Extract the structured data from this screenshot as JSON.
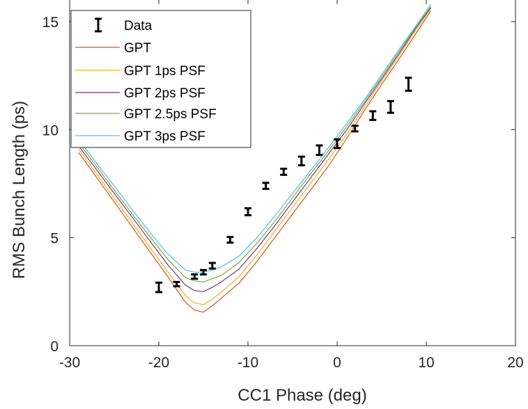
{
  "chart_data": {
    "type": "line",
    "title": "",
    "xlabel": "CC1 Phase (deg)",
    "ylabel": "RMS Bunch Length (ps)",
    "xlim": [
      -30,
      20
    ],
    "ylim": [
      0,
      16
    ],
    "xticks": [
      -30,
      -20,
      -10,
      0,
      10,
      20
    ],
    "yticks": [
      0,
      5,
      10,
      15
    ],
    "grid": false,
    "legend_position": "top-left",
    "series": [
      {
        "name": "Data",
        "style": "errorbar",
        "color": "#000000",
        "x": [
          -20,
          -18,
          -16,
          -15,
          -14,
          -12,
          -10,
          -8,
          -6,
          -4,
          -2,
          0,
          2,
          4,
          6,
          8
        ],
        "y": [
          2.7,
          2.85,
          3.2,
          3.4,
          3.7,
          4.9,
          6.2,
          7.4,
          8.05,
          8.55,
          9.05,
          9.35,
          10.05,
          10.65,
          11.05,
          12.1
        ],
        "err": [
          0.22,
          0.1,
          0.1,
          0.1,
          0.13,
          0.13,
          0.16,
          0.14,
          0.14,
          0.2,
          0.22,
          0.2,
          0.13,
          0.2,
          0.27,
          0.3
        ]
      },
      {
        "name": "GPT",
        "style": "line",
        "color": "#D95319",
        "x": [
          -29,
          -27,
          -25,
          -23,
          -21,
          -19,
          -17,
          -16,
          -15,
          -14,
          -13,
          -11,
          -9,
          -7,
          -5,
          -3,
          -1,
          1,
          3,
          5,
          7,
          9,
          10.5
        ],
        "y": [
          8.95,
          7.8,
          6.65,
          5.5,
          4.35,
          3.2,
          2.0,
          1.65,
          1.55,
          1.85,
          2.2,
          2.9,
          3.9,
          5.0,
          6.1,
          7.2,
          8.3,
          9.55,
          10.85,
          12.1,
          13.3,
          14.55,
          15.5
        ]
      },
      {
        "name": "GPT 1ps PSF",
        "style": "line",
        "color": "#EDB120",
        "x": [
          -29,
          -27,
          -25,
          -23,
          -21,
          -19,
          -17,
          -16,
          -15,
          -14,
          -13,
          -11,
          -9,
          -7,
          -5,
          -3,
          -1,
          1,
          3,
          5,
          7,
          9,
          10.5
        ],
        "y": [
          9.1,
          7.97,
          6.83,
          5.7,
          4.56,
          3.43,
          2.3,
          1.98,
          1.9,
          2.15,
          2.48,
          3.2,
          4.2,
          5.3,
          6.4,
          7.5,
          8.6,
          9.75,
          11.0,
          12.25,
          13.45,
          14.7,
          15.6
        ]
      },
      {
        "name": "GPT 2ps PSF",
        "style": "line",
        "color": "#7E2F8E",
        "x": [
          -29,
          -27,
          -25,
          -23,
          -21,
          -19,
          -17,
          -16,
          -15,
          -14,
          -13,
          -11,
          -9,
          -7,
          -5,
          -3,
          -1,
          1,
          3,
          5,
          7,
          9,
          10.5
        ],
        "y": [
          9.25,
          8.15,
          7.05,
          5.95,
          4.85,
          3.75,
          2.8,
          2.55,
          2.5,
          2.7,
          2.95,
          3.55,
          4.5,
          5.55,
          6.65,
          7.75,
          8.85,
          9.95,
          11.15,
          12.35,
          13.55,
          14.8,
          15.65
        ]
      },
      {
        "name": "GPT 2.5ps PSF",
        "style": "line",
        "color": "#77AC30",
        "x": [
          -29,
          -27,
          -25,
          -23,
          -21,
          -19,
          -17,
          -16,
          -15,
          -14,
          -13,
          -11,
          -9,
          -7,
          -5,
          -3,
          -1,
          1,
          3,
          5,
          7,
          9,
          10.5
        ],
        "y": [
          9.4,
          8.3,
          7.2,
          6.1,
          5.05,
          4.0,
          3.15,
          3.0,
          2.95,
          3.1,
          3.25,
          3.85,
          4.75,
          5.75,
          6.85,
          7.95,
          9.0,
          10.1,
          11.25,
          12.45,
          13.65,
          14.85,
          15.7
        ]
      },
      {
        "name": "GPT 3ps PSF",
        "style": "line",
        "color": "#4DBEEE",
        "x": [
          -29,
          -27,
          -25,
          -23,
          -21,
          -19,
          -17,
          -16,
          -15,
          -14,
          -13,
          -11,
          -9,
          -7,
          -5,
          -3,
          -1,
          1,
          3,
          5,
          7,
          9,
          10.5
        ],
        "y": [
          9.55,
          8.45,
          7.4,
          6.3,
          5.25,
          4.25,
          3.5,
          3.4,
          3.4,
          3.5,
          3.65,
          4.15,
          5.0,
          6.0,
          7.05,
          8.1,
          9.15,
          10.25,
          11.35,
          12.55,
          13.75,
          14.9,
          15.8
        ]
      }
    ]
  }
}
